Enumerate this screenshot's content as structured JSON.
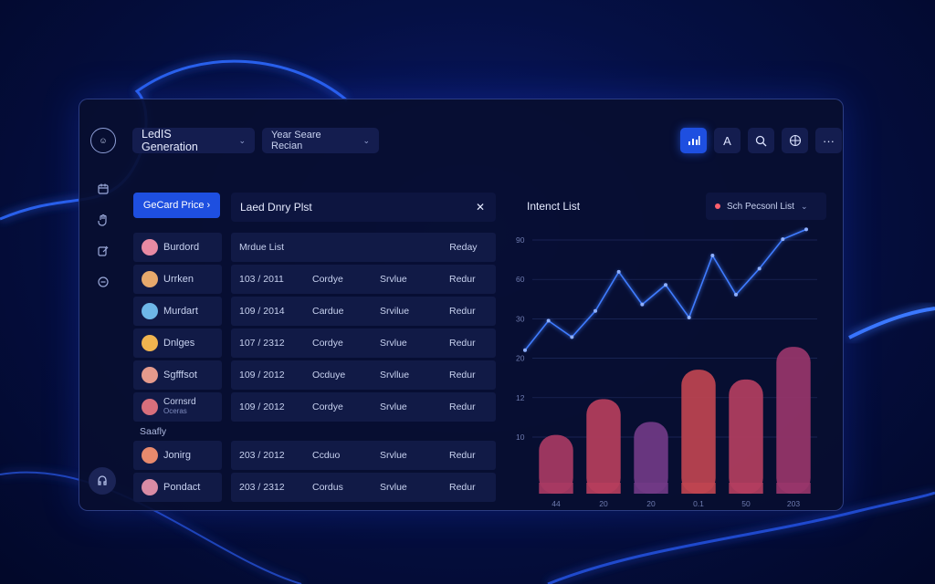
{
  "app": {
    "brand_text": "☺︎",
    "dropdown_primary": "LedIS Generation",
    "dropdown_secondary": "Year Seare Recian"
  },
  "toolbar": {
    "buttons": [
      "chart-bars-icon",
      "text-a-icon",
      "search-icon",
      "globe-icon",
      "more-icon"
    ],
    "text_button_label": "A",
    "more_label": "···"
  },
  "sidebar": {
    "icons": [
      "calendar-icon",
      "hand-icon",
      "edit-icon",
      "chat-icon"
    ],
    "bottom_icon": "support-icon"
  },
  "left": {
    "cta_label": "GeCard Price",
    "names": [
      {
        "name": "Burdord",
        "avatar_color": "#e88aa3"
      },
      {
        "name": "Urrken",
        "avatar_color": "#e7a96c"
      },
      {
        "name": "Murdart",
        "avatar_color": "#6eb7e8"
      },
      {
        "name": "Dnlges",
        "avatar_color": "#f0b44f"
      },
      {
        "name": "Sgfffsot",
        "avatar_color": "#e59a8c"
      },
      {
        "name": "Cornsrd",
        "sub": "Oceras",
        "avatar_color": "#d86f7c"
      }
    ],
    "section_label": "Saafly",
    "names_extra": [
      {
        "name": "Jonirg",
        "avatar_color": "#e88a6d"
      },
      {
        "name": "Pondact",
        "avatar_color": "#d98ca5"
      }
    ]
  },
  "table": {
    "title": "Laed Dnry Plst",
    "close_icon": "close-icon",
    "header_left": "Mrdue List",
    "header_right": "Reday",
    "rows": [
      [
        "103 / 2011",
        "Cordye",
        "Srvlue",
        "Redur"
      ],
      [
        "109 / 2014",
        "Cardue",
        "Srvilue",
        "Redur"
      ],
      [
        "107 / 2312",
        "Cordye",
        "Srvlue",
        "Redur"
      ],
      [
        "109 / 2012",
        "Ocduye",
        "Srvllue",
        "Redur"
      ],
      [
        "109 / 2012",
        "Cordye",
        "Srvlue",
        "Redur"
      ]
    ],
    "rows_extra": [
      [
        "203 / 2012",
        "Ccduo",
        "Srvlue",
        "Redur"
      ],
      [
        "203 / 2312",
        "Cordus",
        "Srvlue",
        "Redur"
      ]
    ]
  },
  "chart_panel": {
    "title": "Intenct List",
    "filter_label": "Sch Pecsonl List",
    "filter_dot_color": "#ff5f6d"
  },
  "chart_data": {
    "type": "bar",
    "categories": [
      "44",
      "20",
      "20",
      "0.1",
      "50",
      "203"
    ],
    "ytick_labels": [
      "90",
      "60",
      "30",
      "20",
      "12",
      "10"
    ],
    "values": [
      18,
      29,
      22,
      38,
      35,
      45
    ],
    "ylim": [
      0,
      80
    ],
    "bar_colors": [
      "#a83a63",
      "#b63e5c",
      "#713a86",
      "#bf4450",
      "#b33e60",
      "#98356a"
    ],
    "line_series": {
      "color": "#3f7cff",
      "values": [
        44,
        53,
        48,
        56,
        68,
        58,
        64,
        54,
        73,
        61,
        69,
        78,
        81
      ]
    }
  }
}
